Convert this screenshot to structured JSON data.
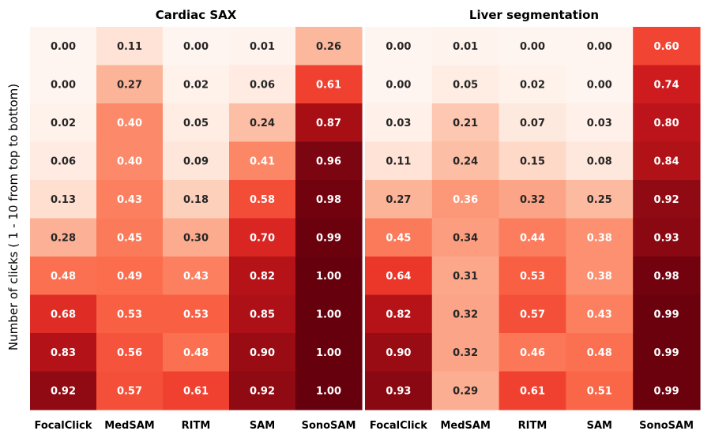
{
  "chart_data": {
    "type": "heatmap",
    "ylabel": "Number of clicks ( 1 - 10 from top to bottom)",
    "methods": [
      "FocalClick",
      "MedSAM",
      "RITM",
      "SAM",
      "SonoSAM"
    ],
    "color_scale": {
      "min": 0.0,
      "max": 1.0,
      "low_color": "#fff5f0",
      "high_color": "#67000d"
    },
    "panels": [
      {
        "title": "Cardiac SAX",
        "columns": [
          "FocalClick",
          "MedSAM",
          "RITM",
          "SAM",
          "SonoSAM"
        ],
        "rows": [
          [
            "0.00",
            "0.11",
            "0.00",
            "0.01",
            "0.26"
          ],
          [
            "0.00",
            "0.27",
            "0.02",
            "0.06",
            "0.61"
          ],
          [
            "0.02",
            "0.40",
            "0.05",
            "0.24",
            "0.87"
          ],
          [
            "0.06",
            "0.40",
            "0.09",
            "0.41",
            "0.96"
          ],
          [
            "0.13",
            "0.43",
            "0.18",
            "0.58",
            "0.98"
          ],
          [
            "0.28",
            "0.45",
            "0.30",
            "0.70",
            "0.99"
          ],
          [
            "0.48",
            "0.49",
            "0.43",
            "0.82",
            "1.00"
          ],
          [
            "0.68",
            "0.53",
            "0.53",
            "0.85",
            "1.00"
          ],
          [
            "0.83",
            "0.56",
            "0.48",
            "0.90",
            "1.00"
          ],
          [
            "0.92",
            "0.57",
            "0.61",
            "0.92",
            "1.00"
          ]
        ]
      },
      {
        "title": "Liver segmentation",
        "columns": [
          "FocalClick",
          "MedSAM",
          "RITM",
          "SAM",
          "SonoSAM"
        ],
        "rows": [
          [
            "0.00",
            "0.01",
            "0.00",
            "0.00",
            "0.60"
          ],
          [
            "0.00",
            "0.05",
            "0.02",
            "0.00",
            "0.74"
          ],
          [
            "0.03",
            "0.21",
            "0.07",
            "0.03",
            "0.80"
          ],
          [
            "0.11",
            "0.24",
            "0.15",
            "0.08",
            "0.84"
          ],
          [
            "0.27",
            "0.36",
            "0.32",
            "0.25",
            "0.92"
          ],
          [
            "0.45",
            "0.34",
            "0.44",
            "0.38",
            "0.93"
          ],
          [
            "0.64",
            "0.31",
            "0.53",
            "0.38",
            "0.98"
          ],
          [
            "0.82",
            "0.32",
            "0.57",
            "0.43",
            "0.99"
          ],
          [
            "0.90",
            "0.32",
            "0.46",
            "0.48",
            "0.99"
          ],
          [
            "0.93",
            "0.29",
            "0.61",
            "0.51",
            "0.99"
          ]
        ]
      }
    ]
  }
}
